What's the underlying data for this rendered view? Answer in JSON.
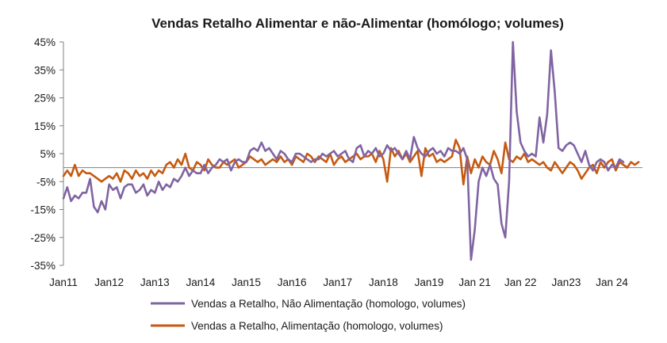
{
  "chart_data": {
    "type": "line",
    "title": "Vendas Retalho Alimentar e não-Alimentar (homólogo; volumes)",
    "xlabel": "",
    "ylabel": "",
    "ylim": [
      -35,
      45
    ],
    "y_ticks": [
      -35,
      -25,
      -15,
      -5,
      5,
      15,
      25,
      35,
      45
    ],
    "y_tick_labels": [
      "-35%",
      "-25%",
      "-15%",
      "-5%",
      "5%",
      "15%",
      "25%",
      "35%",
      "45%"
    ],
    "x_tick_labels": [
      "Jan11",
      "Jan12",
      "Jan13",
      "Jan14",
      "Jan15",
      "Jan16",
      "Jan17",
      "Jan18",
      "Jan19",
      "Jan 21",
      "Jan 22",
      "Jan23",
      "Jan 24"
    ],
    "x_tick_months": [
      0,
      12,
      24,
      36,
      48,
      60,
      72,
      84,
      96,
      108,
      120,
      132,
      144
    ],
    "x_domain": [
      0,
      152
    ],
    "legend_position": "bottom",
    "grid": false,
    "series": [
      {
        "name": "Vendas a Retalho, Não Alimentação (homologo, volumes)",
        "color": "#8064A2",
        "values": [
          -11,
          -7,
          -12,
          -10,
          -11,
          -9,
          -9,
          -4,
          -14,
          -16,
          -12,
          -15,
          -6,
          -8,
          -7,
          -11,
          -7,
          -6,
          -6,
          -9,
          -8,
          -6,
          -10,
          -8,
          -9,
          -5,
          -8,
          -6,
          -7,
          -4,
          -5,
          -3,
          0,
          -3,
          -1,
          -2,
          -2,
          1,
          -2,
          0,
          1,
          3,
          2,
          3,
          -1,
          2,
          3,
          2,
          2,
          6,
          7,
          6,
          9,
          6,
          7,
          5,
          3,
          6,
          5,
          3,
          2,
          5,
          5,
          4,
          3,
          2,
          3,
          3,
          5,
          4,
          5,
          6,
          4,
          5,
          6,
          3,
          2,
          7,
          8,
          4,
          6,
          5,
          7,
          4,
          5,
          8,
          6,
          7,
          5,
          3,
          6,
          3,
          11,
          7,
          5,
          4,
          6,
          7,
          5,
          6,
          4,
          7,
          6,
          6,
          5,
          7,
          3,
          -33,
          -22,
          -5,
          0,
          -3,
          1,
          -4,
          -6,
          -20,
          -25,
          -5,
          45,
          20,
          9,
          6,
          4,
          5,
          4,
          18,
          9,
          19,
          42,
          27,
          7,
          6,
          8,
          9,
          8,
          5,
          2,
          6,
          1,
          -1,
          2,
          3,
          2,
          -1,
          1,
          0,
          3,
          2
        ]
      },
      {
        "name": "Vendas a Retalho, Alimentação (homologo, volumes)",
        "color": "#C55A11",
        "values": [
          -3,
          -1,
          -3,
          1,
          -3,
          -1,
          -2,
          -2,
          -3,
          -4,
          -5,
          -4,
          -3,
          -4,
          -2,
          -5,
          -1,
          -2,
          -4,
          -1,
          -3,
          -2,
          -4,
          -1,
          -3,
          -1,
          -2,
          1,
          2,
          0,
          3,
          1,
          5,
          0,
          -1,
          2,
          1,
          -1,
          3,
          1,
          0,
          0,
          2,
          1,
          2,
          3,
          0,
          1,
          2,
          4,
          3,
          2,
          3,
          1,
          2,
          3,
          2,
          4,
          2,
          3,
          1,
          4,
          3,
          2,
          5,
          4,
          2,
          4,
          3,
          2,
          5,
          1,
          3,
          4,
          2,
          3,
          4,
          5,
          3,
          4,
          4,
          5,
          2,
          6,
          3,
          -5,
          7,
          4,
          6,
          3,
          5,
          2,
          4,
          6,
          -3,
          7,
          4,
          5,
          2,
          3,
          2,
          3,
          4,
          10,
          7,
          -6,
          4,
          -2,
          3,
          0,
          4,
          2,
          1,
          6,
          3,
          -2,
          9,
          3,
          2,
          4,
          3,
          5,
          2,
          3,
          2,
          1,
          2,
          0,
          -1,
          2,
          0,
          -2,
          0,
          2,
          1,
          -1,
          -4,
          -2,
          0,
          1,
          -2,
          2,
          0,
          2,
          3,
          -1,
          2,
          1,
          0,
          2,
          1,
          2
        ]
      }
    ]
  }
}
